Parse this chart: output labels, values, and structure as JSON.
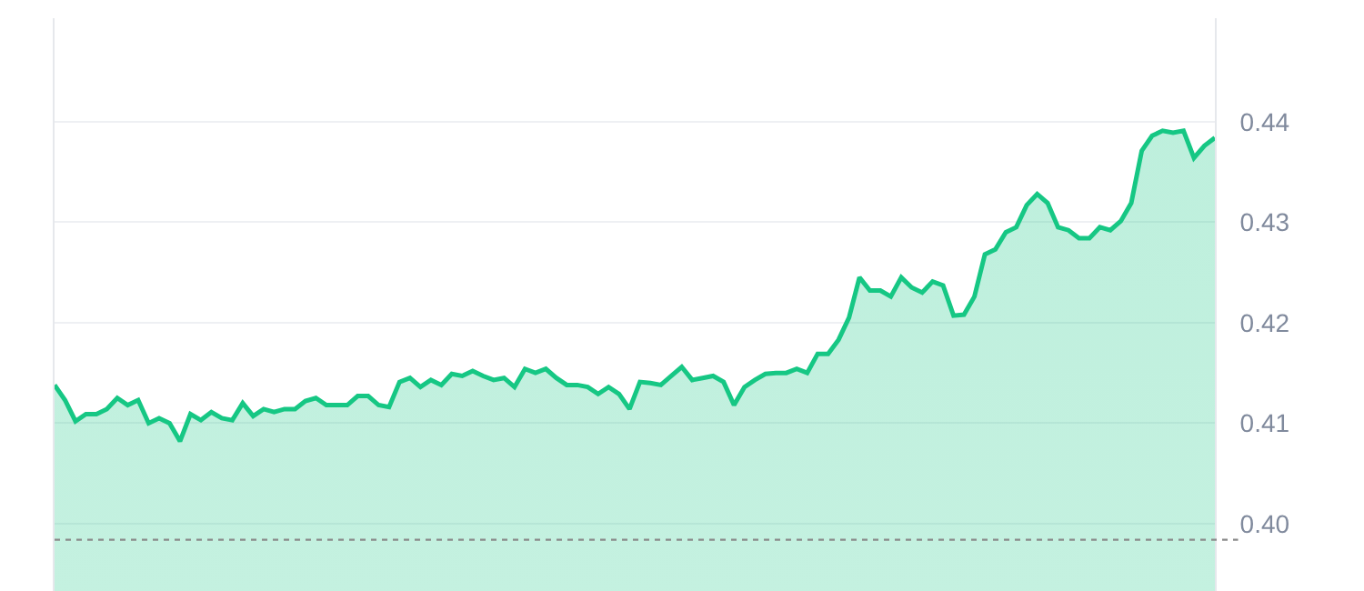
{
  "chart_data": {
    "type": "area",
    "categories": [
      null,
      null,
      null,
      null,
      null,
      null,
      null,
      null,
      null,
      null,
      null,
      null,
      null,
      null,
      null,
      null,
      null,
      null,
      null,
      null,
      null,
      null,
      null,
      null,
      null,
      null,
      null,
      null,
      null,
      null,
      null,
      null,
      null,
      null,
      null,
      null,
      null,
      null,
      null,
      null,
      null,
      null,
      null,
      null,
      null,
      null,
      null,
      null,
      null,
      null,
      null,
      null,
      null,
      null,
      null,
      null,
      null,
      null,
      null,
      null,
      null,
      null,
      null,
      null,
      null,
      null,
      null,
      null,
      null,
      null,
      null,
      null,
      null,
      null,
      null,
      null,
      null,
      null,
      null,
      null,
      null,
      null,
      null,
      null,
      null,
      null,
      null,
      null,
      null,
      null,
      null,
      null,
      null,
      null,
      null,
      null,
      null,
      null,
      null,
      null,
      null,
      null,
      null,
      null,
      null,
      null,
      null,
      null,
      null,
      null,
      null,
      null
    ],
    "series": [
      {
        "color": "#16c784",
        "values": [
          0.4138,
          0.4123,
          0.4102,
          0.4109,
          0.4109,
          0.4114,
          0.4125,
          0.4118,
          0.4123,
          0.41,
          0.4105,
          0.41,
          0.4082,
          0.4109,
          0.4103,
          0.4111,
          0.4105,
          0.4103,
          0.412,
          0.4107,
          0.4114,
          0.4111,
          0.4114,
          0.4114,
          0.4122,
          0.4125,
          0.4118,
          0.4118,
          0.4118,
          0.4127,
          0.4127,
          0.4118,
          0.4116,
          0.4141,
          0.4145,
          0.4136,
          0.4143,
          0.4138,
          0.4149,
          0.4147,
          0.4152,
          0.4147,
          0.4143,
          0.4145,
          0.4136,
          0.4154,
          0.415,
          0.4154,
          0.4145,
          0.4138,
          0.4138,
          0.4136,
          0.4129,
          0.4136,
          0.4129,
          0.4114,
          0.4141,
          0.414,
          0.4138,
          0.4147,
          0.4156,
          0.4143,
          0.4145,
          0.4147,
          0.4141,
          0.4118,
          0.4136,
          0.4143,
          0.4149,
          0.415,
          0.415,
          0.4154,
          0.415,
          0.4169,
          0.4169,
          0.4183,
          0.4205,
          0.4245,
          0.4232,
          0.4232,
          0.4226,
          0.4245,
          0.4235,
          0.423,
          0.4241,
          0.4237,
          0.4207,
          0.4208,
          0.4226,
          0.4268,
          0.4273,
          0.429,
          0.4295,
          0.4317,
          0.4328,
          0.4319,
          0.4295,
          0.4292,
          0.4284,
          0.4284,
          0.4295,
          0.4292,
          0.4301,
          0.4319,
          0.4371,
          0.4386,
          0.4391,
          0.4389,
          0.4391,
          0.4364,
          0.4376,
          0.4384
        ]
      }
    ],
    "ylim": [
      0.3933,
      0.4503
    ],
    "yticks": [
      {
        "value": 0.4,
        "label": "0.40"
      },
      {
        "value": 0.41,
        "label": "0.41"
      },
      {
        "value": 0.42,
        "label": "0.42"
      },
      {
        "value": 0.43,
        "label": "0.43"
      },
      {
        "value": 0.44,
        "label": "0.44"
      }
    ],
    "ref_lines": [
      {
        "axis": "y",
        "value": 0.3984,
        "color": "#8a8a8a",
        "line_style": "dotted"
      }
    ],
    "grid": "y",
    "tick_labels": "y"
  }
}
